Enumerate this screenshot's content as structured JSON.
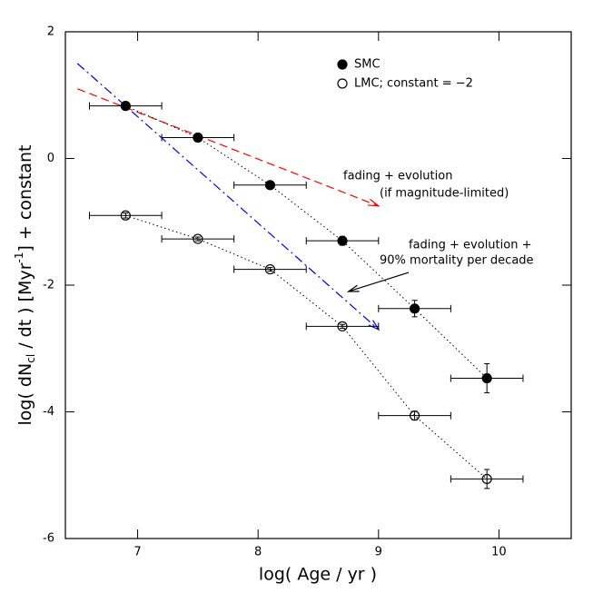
{
  "chart_data": {
    "type": "scatter",
    "xlabel": "log( Age / yr )",
    "ylabel_parts": [
      "log( dN",
      "cl",
      " / dt )  [Myr",
      "-1",
      "] + constant"
    ],
    "xlim": [
      6.4,
      10.6
    ],
    "ylim": [
      -6,
      2
    ],
    "xticks": [
      7,
      8,
      9,
      10
    ],
    "yticks": [
      -6,
      -4,
      -2,
      0,
      2
    ],
    "series": [
      {
        "name": "SMC",
        "color": "#000000",
        "marker": "filled",
        "x": [
          6.9,
          7.5,
          8.1,
          8.7,
          9.3,
          9.9
        ],
        "values": [
          0.83,
          0.33,
          -0.42,
          -1.3,
          -2.37,
          -3.47
        ],
        "xerr": [
          0.3,
          0.3,
          0.3,
          0.3,
          0.3,
          0.3
        ],
        "yerr": [
          0.02,
          0.02,
          0.03,
          0.07,
          0.13,
          0.23
        ]
      },
      {
        "name": "LMC; constant = −2",
        "color": "#000000",
        "marker": "open",
        "x": [
          6.9,
          7.5,
          8.1,
          8.7,
          9.3,
          9.9
        ],
        "values": [
          -0.9,
          -1.27,
          -1.75,
          -2.65,
          -4.06,
          -5.06
        ],
        "xerr": [
          0.3,
          0.3,
          0.3,
          0.3,
          0.3,
          0.3
        ],
        "yerr": [
          0.04,
          0.03,
          0.03,
          0.03,
          0.07,
          0.15
        ]
      }
    ],
    "lines": [
      {
        "color": "#ff0000",
        "style": "dashed",
        "x": [
          6.5,
          9.0
        ],
        "values": [
          1.1,
          -0.75
        ]
      },
      {
        "color": "#0000ff",
        "style": "dashdot",
        "x": [
          6.5,
          9.0
        ],
        "values": [
          1.5,
          -2.7
        ]
      },
      {
        "color": "#000000",
        "style": "solid",
        "x": [
          9.25,
          8.75
        ],
        "values": [
          -1.8,
          -2.1
        ]
      }
    ],
    "annotations": [
      {
        "lines": [
          "fading + evolution",
          "(if magnitude-limited)"
        ]
      },
      {
        "lines": [
          "fading + evolution +",
          "90% mortality per decade"
        ]
      }
    ]
  }
}
